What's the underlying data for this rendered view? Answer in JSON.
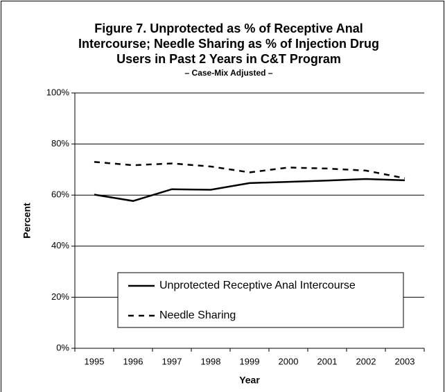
{
  "chart_data": {
    "type": "line",
    "title": [
      "Figure 7. Unprotected as % of Receptive Anal",
      "Intercourse; Needle Sharing as % of Injection Drug",
      "Users in Past 2 Years in C&T Program"
    ],
    "subtitle": "– Case-Mix Adjusted –",
    "x_label": "Year",
    "y_label": "Percent",
    "categories": [
      "1995",
      "1996",
      "1997",
      "1998",
      "1999",
      "2000",
      "2001",
      "2002",
      "2003"
    ],
    "series": [
      {
        "name": "Unprotected Receptive Anal Intercourse",
        "color": "#000000",
        "dash": "solid",
        "values": [
          60.2,
          57.7,
          62.3,
          62.1,
          64.7,
          65.2,
          65.7,
          66.3,
          65.8
        ]
      },
      {
        "name": "Needle Sharing",
        "color": "#000000",
        "dash": "dashed",
        "values": [
          73.0,
          71.7,
          72.4,
          71.2,
          68.9,
          70.8,
          70.4,
          69.6,
          66.6
        ]
      }
    ],
    "ylim": [
      0,
      100
    ],
    "yticks": [
      {
        "value": 0,
        "label": "0%"
      },
      {
        "value": 20,
        "label": "20%"
      },
      {
        "value": 40,
        "label": "40%"
      },
      {
        "value": 60,
        "label": "60%"
      },
      {
        "value": 80,
        "label": "80%"
      },
      {
        "value": 100,
        "label": "100%"
      }
    ],
    "grid": true
  }
}
